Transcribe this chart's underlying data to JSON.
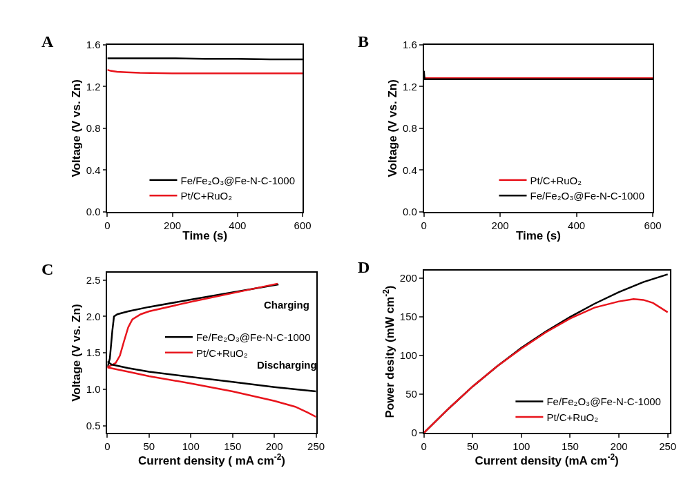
{
  "chart_data": [
    {
      "type": "line",
      "title": "A",
      "xlabel": "Time (s)",
      "ylabel": "Voltage (V vs. Zn)",
      "xlim": [
        0,
        600
      ],
      "ylim": [
        0,
        1.6
      ],
      "xticks": [
        0,
        200,
        400,
        600
      ],
      "yticks": [
        {
          "value": 0,
          "label": "0.0"
        },
        0.4,
        0.8,
        1.2,
        1.6
      ],
      "legend": "bottom right",
      "line_style": "solid",
      "marker": "none",
      "series": [
        {
          "name": "Fe/Fe₂O₃@Fe-N-C-1000",
          "color": "#000000",
          "x": [
            0,
            100,
            200,
            300,
            400,
            500,
            600
          ],
          "values": [
            1.47,
            1.47,
            1.47,
            1.465,
            1.465,
            1.46,
            1.46
          ]
        },
        {
          "name": "Pt/C+RuO₂",
          "color": "#e8141c",
          "x": [
            0,
            10,
            30,
            60,
            100,
            200,
            300,
            400,
            500,
            600
          ],
          "values": [
            1.36,
            1.35,
            1.34,
            1.335,
            1.33,
            1.325,
            1.325,
            1.325,
            1.325,
            1.325
          ]
        }
      ]
    },
    {
      "type": "line",
      "title": "B",
      "xlabel": "Time (s)",
      "ylabel": "Voltage (V vs. Zn)",
      "xlim": [
        0,
        600
      ],
      "ylim": [
        0,
        1.6
      ],
      "xticks": [
        0,
        200,
        400,
        600
      ],
      "yticks": [
        {
          "value": 0,
          "label": "0.0"
        },
        0.4,
        0.8,
        1.2,
        1.6
      ],
      "legend": "bottom right",
      "line_style": "solid",
      "marker": "none",
      "series": [
        {
          "name": "Pt/C+RuO₂",
          "color": "#e8141c",
          "x": [
            0,
            2,
            5,
            100,
            200,
            300,
            400,
            500,
            600
          ],
          "values": [
            1.3,
            1.28,
            1.28,
            1.28,
            1.28,
            1.28,
            1.28,
            1.28,
            1.28
          ]
        },
        {
          "name": "Fe/Fe₂O₃@Fe-N-C-1000",
          "color": "#000000",
          "x": [
            0,
            2,
            5,
            100,
            200,
            300,
            400,
            500,
            600
          ],
          "values": [
            1.35,
            1.27,
            1.27,
            1.27,
            1.27,
            1.27,
            1.27,
            1.27,
            1.27
          ]
        }
      ]
    },
    {
      "type": "line",
      "title": "C",
      "xlabel": "Current density ( mA cm$^{-2}$)",
      "ylabel": "Voltage (V vs. Zn)",
      "xlim": [
        0,
        250
      ],
      "ylim": [
        0.4,
        2.6
      ],
      "xticks": [
        0,
        50,
        100,
        150,
        200,
        250
      ],
      "yticks": [
        0.5,
        {
          "value": 1,
          "label": "1.0"
        },
        1.5,
        {
          "value": 2,
          "label": "2.0"
        },
        2.5
      ],
      "legend": "center",
      "line_style": "solid",
      "marker": "none",
      "annotations": [
        "Charging",
        "Discharging"
      ],
      "series": [
        {
          "name": "Fe/Fe₂O₃@Fe-N-C-1000",
          "color": "#000000",
          "x": [
            0,
            3,
            6,
            8,
            12,
            25,
            50,
            100,
            150,
            205
          ],
          "values": [
            1.3,
            1.42,
            1.8,
            2.0,
            2.03,
            2.07,
            2.13,
            2.23,
            2.33,
            2.44
          ]
        },
        {
          "name": "Pt/C+RuO₂",
          "color": "#e8141c",
          "x": [
            0,
            10,
            15,
            20,
            25,
            30,
            40,
            50,
            100,
            150,
            204
          ],
          "values": [
            1.3,
            1.36,
            1.46,
            1.66,
            1.85,
            1.96,
            2.03,
            2.07,
            2.2,
            2.32,
            2.45
          ]
        },
        {
          "color": "#000000",
          "x": [
            0,
            5,
            25,
            50,
            100,
            150,
            200,
            250
          ],
          "values": [
            1.38,
            1.34,
            1.29,
            1.24,
            1.17,
            1.1,
            1.03,
            0.97
          ]
        },
        {
          "color": "#e8141c",
          "x": [
            0,
            25,
            50,
            100,
            150,
            200,
            225,
            240,
            250
          ],
          "values": [
            1.3,
            1.24,
            1.18,
            1.08,
            0.97,
            0.84,
            0.76,
            0.68,
            0.62
          ]
        }
      ]
    },
    {
      "type": "line",
      "title": "D",
      "xlabel": "Current density (mA cm$^{-2}$)",
      "ylabel": "Power desity (mW cm$^{-2}$)",
      "xlim": [
        0,
        252
      ],
      "ylim": [
        0,
        210
      ],
      "xticks": [
        0,
        50,
        100,
        150,
        200,
        250
      ],
      "yticks": [
        0,
        50,
        100,
        150,
        200
      ],
      "legend": "bottom right",
      "line_style": "solid",
      "marker": "none",
      "series": [
        {
          "name": "Fe/Fe₂O₃@Fe-N-C-1000",
          "color": "#000000",
          "x": [
            0,
            25,
            50,
            75,
            100,
            125,
            150,
            175,
            200,
            225,
            250
          ],
          "values": [
            0,
            31,
            60,
            86,
            110,
            131,
            150,
            167,
            182,
            195,
            205
          ]
        },
        {
          "name": "Pt/C+RuO₂",
          "color": "#e8141c",
          "x": [
            0,
            25,
            50,
            75,
            100,
            125,
            150,
            175,
            200,
            215,
            225,
            235,
            250
          ],
          "values": [
            0,
            31,
            60,
            86,
            109,
            130,
            148,
            162,
            170,
            173,
            172,
            168,
            156
          ]
        }
      ]
    }
  ]
}
